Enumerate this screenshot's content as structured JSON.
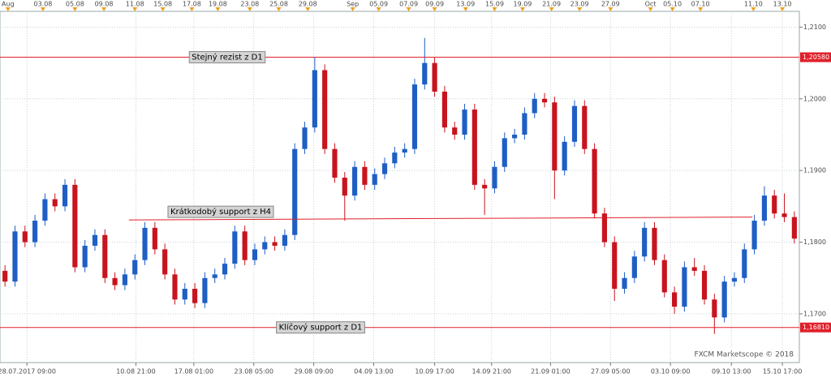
{
  "chart_data": {
    "type": "candlestick",
    "xlim": [
      0,
      80
    ],
    "ylim": [
      1.1632,
      1.2122
    ],
    "yticks": [
      {
        "value": 1.17,
        "label": "1,1700"
      },
      {
        "value": 1.18,
        "label": "1,1800"
      },
      {
        "value": 1.19,
        "label": "1,1900"
      },
      {
        "value": 1.2,
        "label": "1,2000"
      },
      {
        "value": 1.21,
        "label": "1,2100"
      }
    ],
    "xticks": [
      {
        "value": 2.7,
        "label": "28.07.2017 09:00"
      },
      {
        "value": 13.6,
        "label": "10.08 21:00"
      },
      {
        "value": 19.4,
        "label": "17.08 01:00"
      },
      {
        "value": 25.4,
        "label": "23.08 05:00"
      },
      {
        "value": 31.4,
        "label": "29.08 09:00"
      },
      {
        "value": 37.4,
        "label": "04.09 13:00"
      },
      {
        "value": 43.5,
        "label": "10.09 17:00"
      },
      {
        "value": 49.2,
        "label": "14.09 21:00"
      },
      {
        "value": 55.1,
        "label": "21.09 01:00"
      },
      {
        "value": 61.1,
        "label": "27.09 05:00"
      },
      {
        "value": 67.1,
        "label": "03.10 09:00"
      },
      {
        "value": 73.2,
        "label": "09.10 13:00"
      },
      {
        "value": 78.3,
        "label": "15.10 17:00"
      }
    ],
    "x2ticks": [
      {
        "value": 0.8,
        "label": "Aug"
      },
      {
        "value": 4.3,
        "label": "03.08"
      },
      {
        "value": 7.5,
        "label": "05.08"
      },
      {
        "value": 10.4,
        "label": "09.08"
      },
      {
        "value": 13.5,
        "label": "11.08"
      },
      {
        "value": 16.3,
        "label": "15.08"
      },
      {
        "value": 19.2,
        "label": "17.08"
      },
      {
        "value": 21.8,
        "label": "19.08"
      },
      {
        "value": 25.0,
        "label": "23.08"
      },
      {
        "value": 27.9,
        "label": "25.08"
      },
      {
        "value": 30.8,
        "label": "29.08"
      },
      {
        "value": 35.3,
        "label": "Sep"
      },
      {
        "value": 37.9,
        "label": "05.09"
      },
      {
        "value": 40.9,
        "label": "07.09"
      },
      {
        "value": 43.5,
        "label": "09.09"
      },
      {
        "value": 46.6,
        "label": "13.09"
      },
      {
        "value": 49.5,
        "label": "15.09"
      },
      {
        "value": 52.3,
        "label": "19.09"
      },
      {
        "value": 55.2,
        "label": "21.09"
      },
      {
        "value": 58.0,
        "label": "23.09"
      },
      {
        "value": 61.1,
        "label": "27.09"
      },
      {
        "value": 65.1,
        "label": "Oct"
      },
      {
        "value": 67.3,
        "label": "05.10"
      },
      {
        "value": 70.1,
        "label": "07.10"
      },
      {
        "value": 75.4,
        "label": "11.10"
      },
      {
        "value": 78.3,
        "label": "13.10"
      }
    ],
    "grid": true,
    "up_color": "#1f5fc4",
    "down_color": "#c8141e",
    "open": [
      1.176,
      1.1745,
      1.1815,
      1.18,
      1.183,
      1.186,
      1.185,
      1.188,
      1.1765,
      1.1795,
      1.181,
      1.175,
      1.174,
      1.1755,
      1.1775,
      1.182,
      1.179,
      1.1755,
      1.172,
      1.1735,
      1.1715,
      1.175,
      1.1755,
      1.177,
      1.1815,
      1.1775,
      1.179,
      1.18,
      1.1795,
      1.181,
      1.193,
      1.196,
      1.204,
      1.193,
      1.189,
      1.1865,
      1.1905,
      1.188,
      1.1895,
      1.191,
      1.1925,
      1.193,
      1.202,
      1.205,
      1.201,
      1.196,
      1.195,
      1.1985,
      1.188,
      1.1875,
      1.1905,
      1.1945,
      1.195,
      1.198,
      1.2,
      1.1995,
      1.19,
      1.194,
      1.199,
      1.193,
      1.184,
      1.18,
      1.1735,
      1.175,
      1.178,
      1.182,
      1.1775,
      1.173,
      1.171,
      1.1765,
      1.176,
      1.172,
      1.1695,
      1.1745,
      1.175,
      1.179,
      1.183,
      1.1865,
      1.184,
      1.1835
    ],
    "high": [
      1.1768,
      1.1823,
      1.1823,
      1.1838,
      1.1868,
      1.1868,
      1.1888,
      1.1888,
      1.1803,
      1.1818,
      1.1818,
      1.1758,
      1.1763,
      1.1783,
      1.1828,
      1.1828,
      1.1798,
      1.1763,
      1.1743,
      1.1743,
      1.1758,
      1.1763,
      1.1778,
      1.1823,
      1.1823,
      1.1798,
      1.1808,
      1.1808,
      1.1818,
      1.1938,
      1.1968,
      1.2058,
      1.2048,
      1.1938,
      1.1898,
      1.1913,
      1.1913,
      1.1903,
      1.1918,
      1.1933,
      1.1938,
      1.2028,
      1.2085,
      1.2058,
      1.2018,
      1.1968,
      1.1993,
      1.1993,
      1.1888,
      1.1913,
      1.1953,
      1.1958,
      1.1988,
      1.2008,
      1.2008,
      1.2003,
      1.1948,
      1.1998,
      1.1998,
      1.1938,
      1.1848,
      1.1808,
      1.1758,
      1.1788,
      1.1828,
      1.1828,
      1.1783,
      1.1738,
      1.1773,
      1.1778,
      1.1768,
      1.1728,
      1.1753,
      1.1758,
      1.1798,
      1.1838,
      1.1878,
      1.1873,
      1.1868,
      1.1843
    ],
    "low": [
      1.1738,
      1.1738,
      1.1793,
      1.1793,
      1.1823,
      1.1843,
      1.1843,
      1.1758,
      1.1758,
      1.1788,
      1.1743,
      1.1733,
      1.1733,
      1.1748,
      1.1768,
      1.1783,
      1.1748,
      1.1713,
      1.1713,
      1.1708,
      1.1708,
      1.1743,
      1.1748,
      1.1763,
      1.1768,
      1.1768,
      1.1783,
      1.1788,
      1.1788,
      1.1803,
      1.1923,
      1.1953,
      1.1923,
      1.1883,
      1.183,
      1.1858,
      1.1873,
      1.1873,
      1.1888,
      1.1903,
      1.1918,
      1.1923,
      1.2013,
      1.2003,
      1.1953,
      1.1943,
      1.1943,
      1.1873,
      1.1838,
      1.1868,
      1.1898,
      1.1938,
      1.1943,
      1.1973,
      1.1988,
      1.186,
      1.1893,
      1.1933,
      1.1923,
      1.1833,
      1.1793,
      1.1718,
      1.1728,
      1.1743,
      1.1773,
      1.1768,
      1.1723,
      1.17,
      1.1703,
      1.1753,
      1.1713,
      1.1672,
      1.1688,
      1.1738,
      1.1743,
      1.1783,
      1.1823,
      1.1833,
      1.1828,
      1.1798
    ],
    "close": [
      1.1745,
      1.1815,
      1.18,
      1.183,
      1.186,
      1.185,
      1.188,
      1.1765,
      1.1795,
      1.181,
      1.175,
      1.174,
      1.1755,
      1.1775,
      1.182,
      1.179,
      1.1755,
      1.172,
      1.1735,
      1.1715,
      1.175,
      1.1755,
      1.177,
      1.1815,
      1.1775,
      1.179,
      1.18,
      1.1795,
      1.181,
      1.193,
      1.196,
      1.204,
      1.193,
      1.189,
      1.1865,
      1.1905,
      1.188,
      1.1895,
      1.191,
      1.1925,
      1.193,
      1.202,
      1.205,
      1.201,
      1.196,
      1.195,
      1.1985,
      1.188,
      1.1875,
      1.1905,
      1.1945,
      1.195,
      1.198,
      1.2,
      1.1995,
      1.19,
      1.194,
      1.199,
      1.193,
      1.184,
      1.18,
      1.1735,
      1.175,
      1.178,
      1.182,
      1.1775,
      1.173,
      1.171,
      1.1765,
      1.176,
      1.172,
      1.1695,
      1.1745,
      1.175,
      1.179,
      1.183,
      1.1865,
      1.184,
      1.1835,
      1.1805
    ],
    "levels": [
      {
        "value": 1.2058,
        "label": "1,20580",
        "text": "Stejný rezist z D1",
        "color": "#e0202a"
      },
      {
        "value": 1.1681,
        "label": "1,16810",
        "text": "Klíčový support z D1",
        "color": "#e0202a"
      }
    ],
    "trendline": {
      "x": [
        12.9,
        75.3
      ],
      "y": [
        1.1831,
        1.1835
      ],
      "text": "Krátkodobý support z H4",
      "color": "#e0202a"
    },
    "watermark": "FXCM Marketscope © 2018"
  }
}
